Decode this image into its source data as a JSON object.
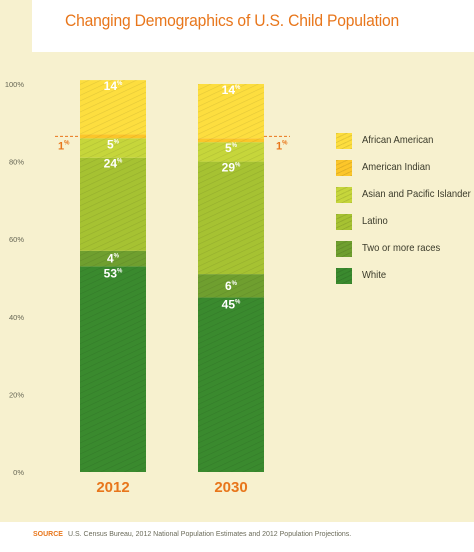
{
  "title": "Changing Demographics of U.S. Child Population",
  "source_label": "SOURCE",
  "source_text": "U.S. Census Bureau, 2012 National Population Estimates and 2012 Population Projections.",
  "percent_sign": "%",
  "colors": {
    "African American": "#fdde3f",
    "American Indian": "#fcc62a",
    "Asian and Pacific Islander": "#c6d63b",
    "Latino": "#a6c232",
    "Two or more races": "#6f9f2f",
    "White": "#3a8a2e",
    "axis_text": "#666655",
    "year_label": "#e8761b",
    "value_label": "#ffffff",
    "callout": "#e8761b"
  },
  "legend": [
    "African American",
    "American Indian",
    "Asian and Pacific Islander",
    "Latino",
    "Two or more races",
    "White"
  ],
  "chart_data": {
    "type": "bar",
    "stacked": true,
    "categories": [
      "2012",
      "2030"
    ],
    "series": [
      {
        "name": "White",
        "values": [
          53,
          45
        ]
      },
      {
        "name": "Two or more races",
        "values": [
          4,
          6
        ]
      },
      {
        "name": "Latino",
        "values": [
          24,
          29
        ]
      },
      {
        "name": "Asian and Pacific Islander",
        "values": [
          5,
          5
        ]
      },
      {
        "name": "American Indian",
        "values": [
          1,
          1
        ]
      },
      {
        "name": "African American",
        "values": [
          14,
          14
        ]
      }
    ],
    "ylim": [
      0,
      100
    ],
    "yticks": [
      "0%",
      "20%",
      "40%",
      "60%",
      "80%",
      "100%"
    ],
    "ytick_values": [
      0,
      20,
      40,
      60,
      80,
      100
    ],
    "legend_position": "right",
    "grid": false
  }
}
